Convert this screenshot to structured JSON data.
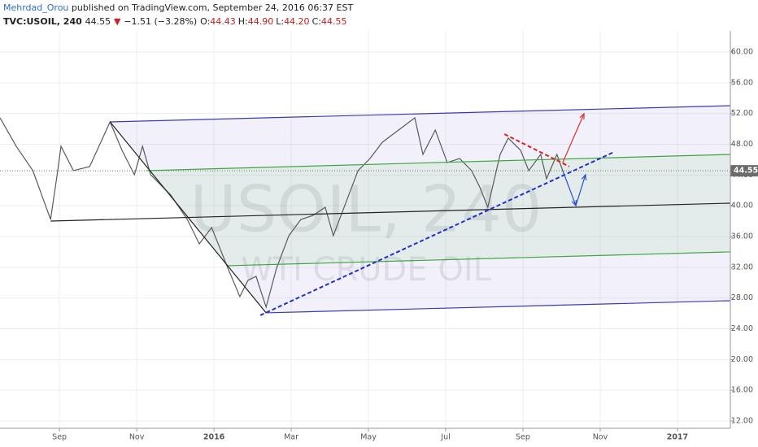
{
  "header": {
    "author": "Mehrdad_Orou",
    "published": "published on TradingView.com, September 24, 2016 06:37 EST",
    "symbol": "TVC:USOIL, 240",
    "last": "44.55",
    "arrow": "▼",
    "change": "−1.51 (−3.28%)",
    "ohlc": [
      {
        "label": "O:",
        "value": "44.43"
      },
      {
        "label": "H:",
        "value": "44.90"
      },
      {
        "label": "L:",
        "value": "44.20"
      },
      {
        "label": "C:",
        "value": "44.55"
      }
    ]
  },
  "chart_data": {
    "type": "line",
    "watermark": "USOIL, 240",
    "watermark_sub": "WTI CRUDE OIL",
    "xlim": [
      -1.54,
      17.37
    ],
    "ylim": [
      11.05,
      62.75
    ],
    "xticks": [
      {
        "value": 0,
        "label": "Sep"
      },
      {
        "value": 2,
        "label": "Nov"
      },
      {
        "value": 4,
        "label": "2016"
      },
      {
        "value": 6,
        "label": "Mar"
      },
      {
        "value": 8,
        "label": "May"
      },
      {
        "value": 10,
        "label": "Jul"
      },
      {
        "value": 12,
        "label": "Sep"
      },
      {
        "value": 14,
        "label": "Nov"
      },
      {
        "value": 16,
        "label": "2017"
      }
    ],
    "yticks": [
      {
        "value": 12,
        "label": "12.00"
      },
      {
        "value": 16,
        "label": "16.00"
      },
      {
        "value": 20,
        "label": "20.00"
      },
      {
        "value": 24,
        "label": "24.00"
      },
      {
        "value": 28,
        "label": "28.00"
      },
      {
        "value": 32,
        "label": "32.00"
      },
      {
        "value": 36,
        "label": "36.00"
      },
      {
        "value": 40,
        "label": "40.00"
      },
      {
        "value": 44,
        "label": "44.00"
      },
      {
        "value": 48,
        "label": "48.00"
      },
      {
        "value": 52,
        "label": "52.00"
      },
      {
        "value": 56,
        "label": "56.00"
      },
      {
        "value": 60,
        "label": "60.00"
      }
    ],
    "grid": true,
    "last_price": {
      "value": 44.55,
      "label": "44.55",
      "color": "#6b6b6b"
    },
    "series": [
      {
        "color": "#5a5a5a",
        "x": [
          -1.54,
          -1.12,
          -0.69,
          -0.23,
          -0.06,
          0.04,
          0.36,
          0.78,
          1.31,
          1.62,
          1.94,
          2.15,
          2.36,
          2.88,
          3.31,
          3.62,
          3.94,
          4.36,
          4.67,
          4.88,
          5.09,
          5.35,
          5.62,
          5.94,
          6.25,
          6.57,
          6.88,
          7.09,
          7.41,
          7.73,
          8.04,
          8.36,
          8.78,
          9.2,
          9.41,
          9.73,
          10.04,
          10.36,
          10.67,
          10.88,
          11.09,
          11.41,
          11.62,
          11.94,
          12.15,
          12.46,
          12.61,
          12.88,
          13.03
        ],
        "values": [
          51.44,
          47.74,
          44.57,
          38.22,
          44.04,
          47.74,
          44.57,
          45.1,
          50.91,
          47.21,
          44.04,
          47.74,
          44.04,
          41.4,
          38.22,
          35.05,
          37.17,
          31.88,
          28.18,
          30.3,
          30.82,
          26.81,
          31.88,
          36.11,
          38.22,
          38.75,
          39.81,
          36.11,
          40.34,
          44.57,
          46.15,
          48.27,
          49.85,
          51.44,
          46.68,
          49.85,
          45.62,
          46.15,
          44.57,
          42.45,
          39.81,
          46.68,
          48.8,
          47.21,
          44.57,
          46.68,
          43.51,
          46.68,
          44.57
        ]
      }
    ],
    "drawings": [
      {
        "style": "solid",
        "color": "#3b3bb5",
        "points": [
          [
            1.31,
            50.91
          ],
          [
            17.37,
            53.02
          ]
        ]
      },
      {
        "style": "solid",
        "color": "#3b3bb5",
        "points": [
          [
            5.35,
            26.07
          ],
          [
            17.37,
            27.65
          ]
        ]
      },
      {
        "style": "solid",
        "color": "#3fa63f",
        "points": [
          [
            2.25,
            44.57
          ],
          [
            17.37,
            46.68
          ]
        ]
      },
      {
        "style": "solid",
        "color": "#3fa63f",
        "points": [
          [
            4.36,
            32.2
          ],
          [
            17.37,
            34.0
          ]
        ]
      },
      {
        "style": "solid",
        "color": "#222222",
        "points": [
          [
            -0.23,
            38.01
          ],
          [
            17.37,
            40.34
          ]
        ]
      },
      {
        "style": "solid",
        "color": "#222222",
        "points": [
          [
            1.31,
            50.91
          ],
          [
            5.35,
            26.07
          ]
        ]
      },
      {
        "style": "dashed",
        "color": "#2330c8",
        "points": [
          [
            5.2,
            25.75
          ],
          [
            14.36,
            47.0
          ]
        ]
      },
      {
        "style": "dashed",
        "color": "#e02020",
        "points": [
          [
            11.52,
            49.32
          ],
          [
            13.2,
            45.1
          ]
        ]
      },
      {
        "style": "arrow",
        "color": "#e03030",
        "points": [
          [
            13.03,
            45.62
          ],
          [
            13.58,
            51.97
          ]
        ]
      },
      {
        "style": "arrow",
        "color": "#2a4fd0",
        "points": [
          [
            13.03,
            44.57
          ],
          [
            13.37,
            40.02
          ]
        ]
      },
      {
        "style": "arrow",
        "color": "#2a4fd0",
        "points": [
          [
            13.37,
            40.02
          ],
          [
            13.62,
            44.04
          ]
        ]
      }
    ],
    "fills": [
      {
        "between": [
          0,
          1
        ],
        "color": "#7b6fd0"
      },
      {
        "between": [
          2,
          3
        ],
        "color": "#66cc66"
      }
    ]
  }
}
